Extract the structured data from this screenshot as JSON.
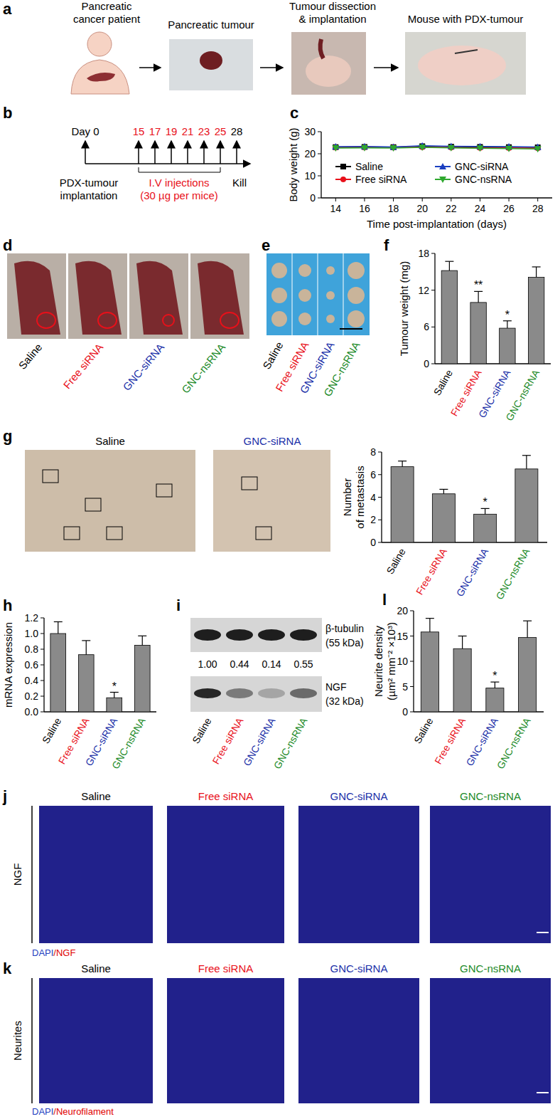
{
  "chart_data": [
    {
      "panel": "c",
      "type": "line",
      "x": [
        14,
        16,
        18,
        20,
        22,
        24,
        26,
        28
      ],
      "xlim": [
        13,
        29
      ],
      "xticks": [
        14,
        16,
        18,
        20,
        22,
        24,
        26,
        28
      ],
      "ylim": [
        0,
        30
      ],
      "yticks": [
        0,
        10,
        20,
        30
      ],
      "x_label": "Time post-implantation (days)",
      "y_label": "Body weight (g)",
      "legend": "bottom",
      "series": [
        {
          "name": "Saline",
          "color": "#000000",
          "marker": "square",
          "values": [
            23,
            23.1,
            23,
            23.4,
            23.2,
            23.1,
            23,
            22.9
          ],
          "errors": [
            0.8,
            0.8,
            0.8,
            0.9,
            0.8,
            0.8,
            0.8,
            0.8
          ]
        },
        {
          "name": "Free siRNA",
          "color": "#e8101a",
          "marker": "circle",
          "values": [
            22.8,
            22.9,
            22.8,
            23,
            22.8,
            22.7,
            22.6,
            22.5
          ],
          "errors": [
            0.7,
            0.7,
            0.7,
            0.8,
            0.7,
            0.7,
            0.7,
            0.7
          ]
        },
        {
          "name": "GNC-siRNA",
          "color": "#1a3fc0",
          "marker": "triangle",
          "values": [
            23.2,
            23.3,
            23.1,
            23.6,
            23.4,
            23.3,
            23.2,
            23.1
          ],
          "errors": [
            0.8,
            0.8,
            0.8,
            0.8,
            0.8,
            0.8,
            0.8,
            0.8
          ]
        },
        {
          "name": "GNC-nsRNA",
          "color": "#2ea82e",
          "marker": "triangle-down",
          "values": [
            22.6,
            22.7,
            22.6,
            22.9,
            22.7,
            22.5,
            22.3,
            22.2
          ],
          "errors": [
            0.7,
            0.7,
            0.7,
            0.8,
            0.7,
            0.7,
            0.7,
            0.7
          ]
        }
      ]
    },
    {
      "panel": "f",
      "type": "bar",
      "categories": [
        "Saline",
        "Free siRNA",
        "GNC-siRNA",
        "GNC-nsRNA"
      ],
      "values": [
        15.2,
        10,
        5.8,
        14.1
      ],
      "errors": [
        1.5,
        1.8,
        1.2,
        1.7
      ],
      "ylim": [
        0,
        18
      ],
      "yticks": [
        0,
        6,
        12,
        18
      ],
      "y_label": [
        "Tumour weight (mg)"
      ],
      "annotations": [
        {
          "category": "Free siRNA",
          "text": "**"
        },
        {
          "category": "GNC-siRNA",
          "text": "*"
        }
      ]
    },
    {
      "panel": "g",
      "type": "bar",
      "categories": [
        "Saline",
        "Free siRNA",
        "GNC-siRNA",
        "GNC-nsRNA"
      ],
      "values": [
        6.7,
        4.3,
        2.5,
        6.5
      ],
      "errors": [
        0.5,
        0.4,
        0.5,
        1.2
      ],
      "ylim": [
        0,
        8
      ],
      "yticks": [
        0,
        2,
        4,
        6,
        8
      ],
      "y_label": [
        "Number",
        "of metastasis"
      ],
      "annotations": [
        {
          "category": "GNC-siRNA",
          "text": "*"
        }
      ]
    },
    {
      "panel": "h",
      "type": "bar",
      "categories": [
        "Saline",
        "Free siRNA",
        "GNC-siRNA",
        "GNC-nsRNA"
      ],
      "values": [
        1.0,
        0.73,
        0.18,
        0.85
      ],
      "errors": [
        0.15,
        0.18,
        0.07,
        0.12
      ],
      "ylim": [
        0,
        1.2
      ],
      "yticks": [
        {
          "value": 0,
          "label": "0.0"
        },
        0.2,
        0.4,
        0.6,
        0.8,
        {
          "value": 1,
          "label": "1.0"
        },
        1.2
      ],
      "y_label": [
        "mRNA expression"
      ],
      "annotations": [
        {
          "category": "GNC-siRNA",
          "text": "*"
        }
      ]
    },
    {
      "panel": "l",
      "type": "bar",
      "categories": [
        "Saline",
        "Free siRNA",
        "GNC-siRNA",
        "GNC-nsRNA"
      ],
      "values": [
        15.8,
        12.5,
        4.7,
        14.7
      ],
      "errors": [
        2.7,
        2.5,
        1.2,
        3.3
      ],
      "ylim": [
        0,
        20
      ],
      "yticks": [
        0,
        5,
        10,
        15,
        20
      ],
      "y_label": [
        "Neurite density",
        "(µm² mm⁻² ×10³)"
      ],
      "annotations": [
        {
          "category": "GNC-siRNA",
          "text": "*"
        }
      ]
    }
  ],
  "panels": {
    "a": {
      "label": "a",
      "steps": [
        [
          "Pancreatic",
          "cancer patient"
        ],
        [
          "Pancreatic tumour"
        ],
        [
          "Tumour dissection",
          "& implantation"
        ],
        [
          "Mouse with PDX-tumour"
        ]
      ]
    },
    "b": {
      "label": "b",
      "start": "Day 0",
      "injection_days": [
        15,
        17,
        19,
        21,
        23,
        25
      ],
      "end_day": 28,
      "start_caption": [
        "PDX-tumour",
        "implantation"
      ],
      "injection_caption": [
        "I.V injections",
        "(30 µg per mice)"
      ],
      "end_caption": "Kill"
    },
    "d": {
      "label": "d",
      "groups": [
        "Saline",
        "Free siRNA",
        "GNC-siRNA",
        "GNC-nsRNA"
      ]
    },
    "e": {
      "label": "e",
      "groups": [
        "Saline",
        "Free siRNA",
        "GNC-siRNA",
        "GNC-nsRNA"
      ]
    },
    "g": {
      "images": [
        "Saline",
        "GNC-siRNA"
      ]
    },
    "i": {
      "label": "i",
      "bands": [
        {
          "name": "β-tubulin",
          "size": "(55 kDa)"
        },
        {
          "name": "NGF",
          "size": "(32 kDa)"
        }
      ],
      "ratios": [
        {
          "value": 1,
          "label": "1.00"
        },
        0.44,
        0.14,
        0.55
      ],
      "groups": [
        "Saline",
        "Free siRNA",
        "GNC-siRNA",
        "GNC-nsRNA"
      ]
    },
    "j": {
      "label": "j",
      "row_label": "NGF",
      "stain": [
        {
          "text": "DAPI",
          "color": "#1f3fbf"
        },
        {
          "text": "/NGF",
          "color": "#e00000"
        }
      ],
      "groups": [
        "Saline",
        "Free  siRNA",
        "GNC-siRNA",
        "GNC-nsRNA"
      ]
    },
    "k": {
      "label": "k",
      "row_label": "Neurites",
      "stain": [
        {
          "text": "DAPI",
          "color": "#1f3fbf"
        },
        {
          "text": "/Neurofilament",
          "color": "#e00000"
        }
      ],
      "groups": [
        "Saline",
        "Free  siRNA",
        "GNC-siRNA",
        "GNC-nsRNA"
      ]
    }
  }
}
